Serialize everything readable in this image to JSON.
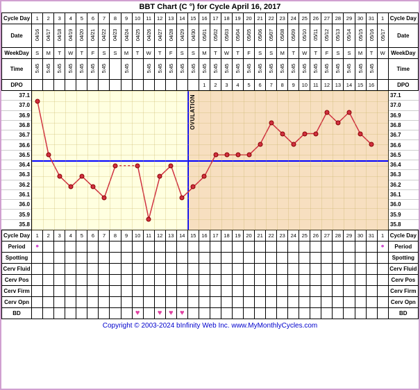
{
  "title": "BBT Chart (C °) for Cycle April 16, 2017",
  "labels": {
    "cycle_day": "Cycle Day",
    "date": "Date",
    "weekday": "WeekDay",
    "time": "Time",
    "dpo": "DPO",
    "period": "Period",
    "spotting": "Spotting",
    "cerv_fluid": "Cerv Fluid",
    "cerv_pos": "Cerv Pos",
    "cerv_firm": "Cerv Firm",
    "cerv_opn": "Cerv Opn",
    "bd": "BD"
  },
  "ovulation_label": "OVULATION",
  "days_count": 32,
  "cycle_days": [
    1,
    2,
    3,
    4,
    5,
    6,
    7,
    8,
    9,
    10,
    11,
    12,
    13,
    14,
    15,
    16,
    17,
    18,
    19,
    20,
    21,
    22,
    23,
    24,
    25,
    26,
    27,
    28,
    29,
    30,
    31,
    1
  ],
  "dates": [
    "04/16",
    "04/17",
    "04/18",
    "04/19",
    "04/20",
    "04/21",
    "04/22",
    "04/23",
    "04/24",
    "04/25",
    "04/26",
    "04/27",
    "04/28",
    "04/29",
    "04/30",
    "05/01",
    "05/02",
    "05/03",
    "05/04",
    "05/05",
    "05/06",
    "05/07",
    "05/08",
    "05/09",
    "05/10",
    "05/11",
    "05/12",
    "05/13",
    "05/14",
    "05/15",
    "05/16",
    "05/17"
  ],
  "weekdays": [
    "S",
    "M",
    "T",
    "W",
    "T",
    "F",
    "S",
    "S",
    "M",
    "T",
    "W",
    "T",
    "F",
    "S",
    "S",
    "M",
    "T",
    "W",
    "T",
    "F",
    "S",
    "S",
    "M",
    "T",
    "W",
    "T",
    "F",
    "S",
    "S",
    "M",
    "T",
    "W"
  ],
  "times": [
    "5:45",
    "5:45",
    "5:45",
    "5:45",
    "5:45",
    "5:45",
    "5:45",
    "",
    "5:45",
    "",
    "5:45",
    "5:45",
    "5:45",
    "5:45",
    "5:45",
    "5:45",
    "5:45",
    "5:45",
    "5:45",
    "5:45",
    "5:45",
    "5:45",
    "5:45",
    "5:45",
    "5:45",
    "5:45",
    "5:45",
    "5:45",
    "5:45",
    "5:45",
    "5:45",
    ""
  ],
  "dpo": [
    "",
    "",
    "",
    "",
    "",
    "",
    "",
    "",
    "",
    "",
    "",
    "",
    "",
    "",
    "",
    "1",
    "2",
    "3",
    "4",
    "5",
    "6",
    "7",
    "8",
    "9",
    "10",
    "11",
    "12",
    "13",
    "14",
    "15",
    "16",
    ""
  ],
  "period": [
    "•",
    "",
    "",
    "",
    "",
    "",
    "",
    "",
    "",
    "",
    "",
    "",
    "",
    "",
    "",
    "",
    "",
    "",
    "",
    "",
    "",
    "",
    "",
    "",
    "",
    "",
    "",
    "",
    "",
    "",
    "",
    "•"
  ],
  "bd": [
    "",
    "",
    "",
    "",
    "",
    "",
    "",
    "",
    "",
    "♥",
    "",
    "♥",
    "♥",
    "♥",
    "",
    "",
    "",
    "",
    "",
    "",
    "",
    "",
    "",
    "",
    "",
    "",
    "",
    "",
    "",
    "",
    "",
    ""
  ],
  "chart": {
    "type": "line",
    "ymin": 35.8,
    "ymax": 37.1,
    "ytick_step": 0.1,
    "yticks": [
      37.1,
      37.0,
      36.9,
      36.8,
      36.7,
      36.6,
      36.5,
      36.4,
      36.3,
      36.2,
      36.1,
      36.0,
      35.9,
      35.8
    ],
    "coverline": 36.45,
    "ovulation_day_index": 14,
    "luteal_start_index": 14,
    "background_follicular": "#ffffe0",
    "background_luteal": "#f7dfc0",
    "line_color": "#d03040",
    "point_color": "#d03040",
    "coverline_color": "#0000ff",
    "grid_color": "rgba(200,180,100,0.3)",
    "temps": [
      37.0,
      36.5,
      36.3,
      36.2,
      36.3,
      36.2,
      36.1,
      36.4,
      null,
      36.4,
      35.9,
      36.3,
      36.4,
      36.1,
      36.2,
      36.3,
      36.5,
      36.5,
      36.5,
      36.5,
      36.6,
      36.8,
      36.7,
      36.6,
      36.7,
      36.7,
      36.9,
      36.8,
      36.9,
      36.7,
      36.6,
      null
    ]
  },
  "footer": "Copyright © 2003-2024 bInfinity Web Inc.    www.MyMonthlyCycles.com"
}
